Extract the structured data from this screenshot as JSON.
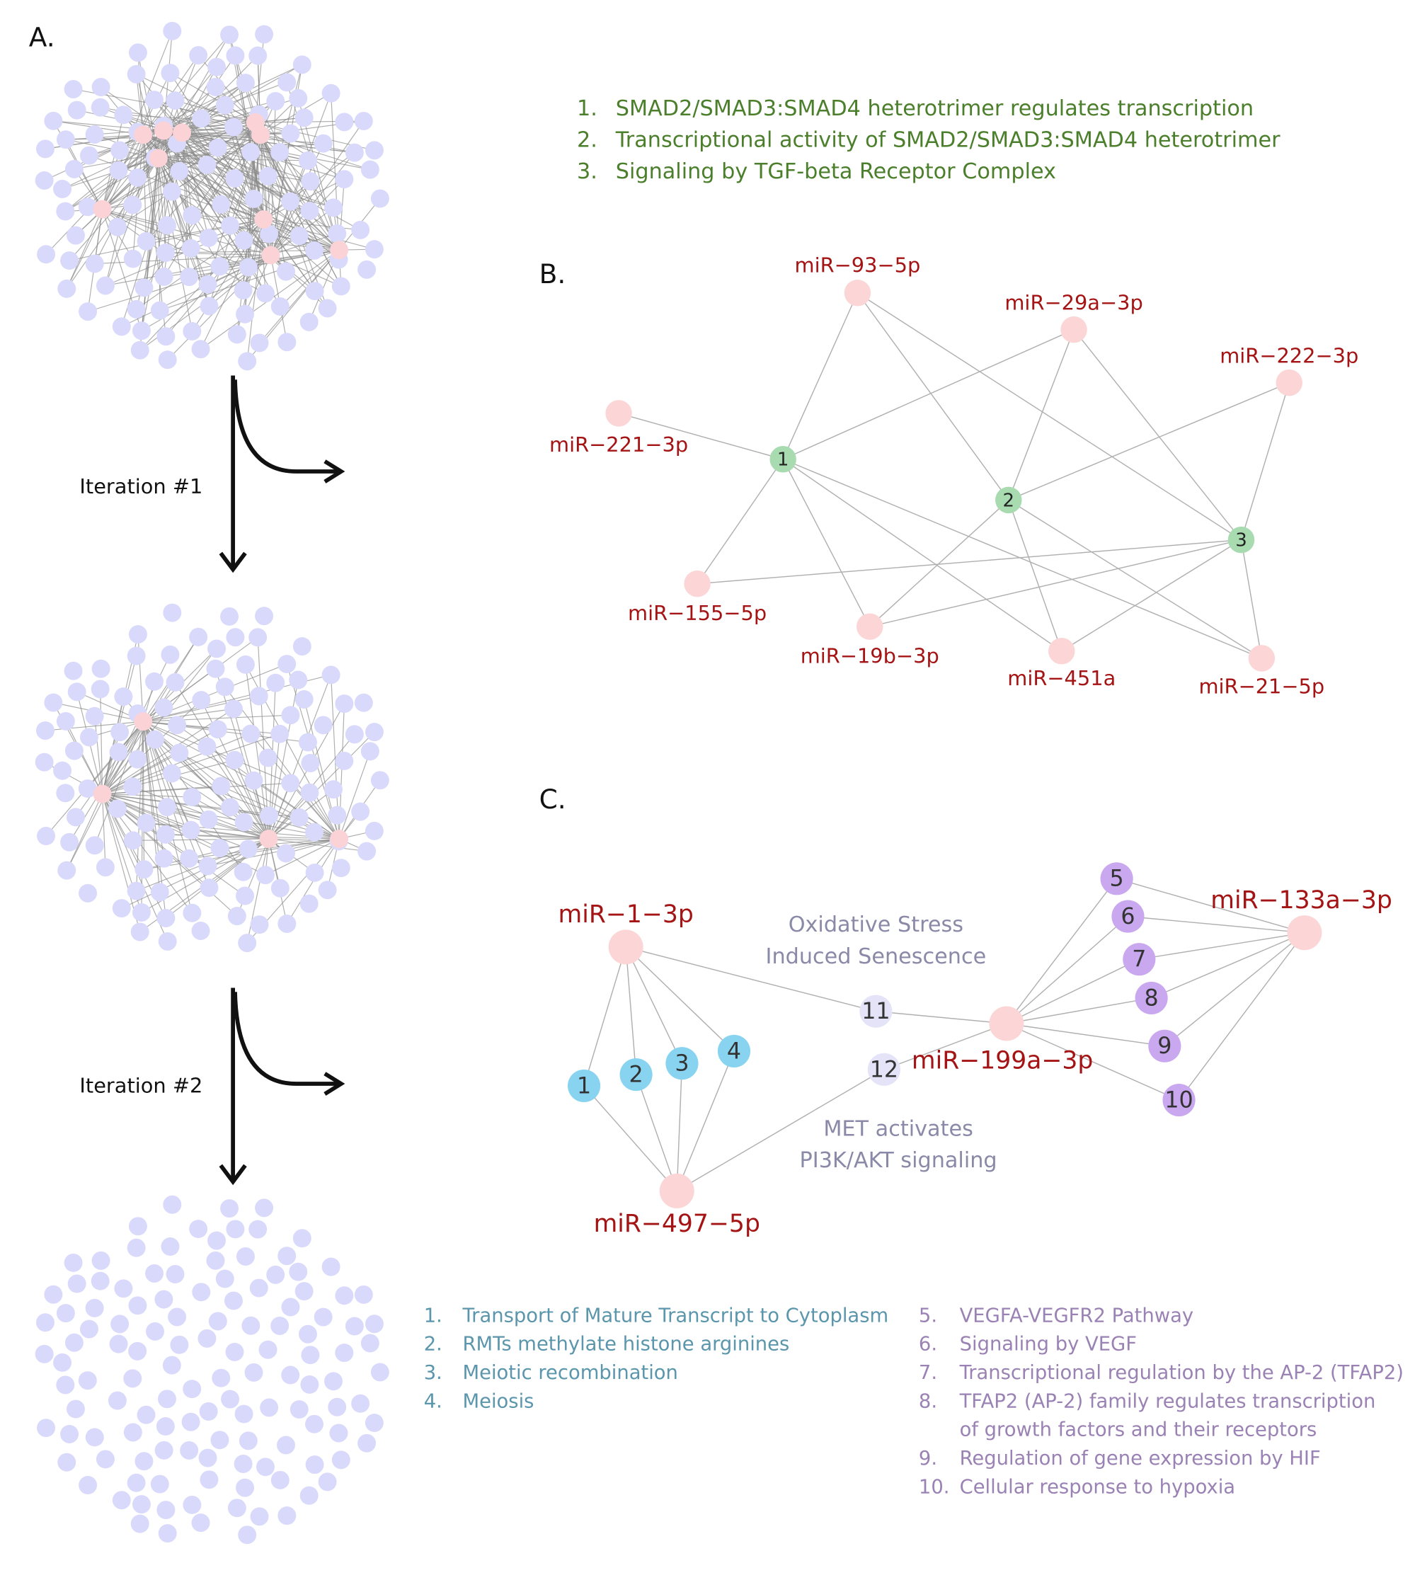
{
  "panel_a": {
    "label": "A.",
    "iterations": [
      "Iteration #1",
      "Iteration #2"
    ]
  },
  "panel_b": {
    "label": "B.",
    "pathways": [
      {
        "number": "1.",
        "name": "SMAD2/SMAD3:SMAD4 heterotrimer regulates transcription"
      },
      {
        "number": "2.",
        "name": "Transcriptional activity of SMAD2/SMAD3:SMAD4 heterotrimer"
      },
      {
        "number": "3.",
        "name": "Signaling by TGF-beta Receptor Complex"
      }
    ],
    "pathway_nodes": [
      "1",
      "2",
      "3"
    ],
    "mirna_nodes": [
      "miR−93−5p",
      "miR−29a−3p",
      "miR−222−3p",
      "miR−221−3p",
      "miR−155−5p",
      "miR−19b−3p",
      "miR−451a",
      "miR−21−5p"
    ]
  },
  "panel_c": {
    "label": "C.",
    "mirna_nodes": [
      "miR−1−3p",
      "miR−133a−3p",
      "miR−199a−3p",
      "miR−497−5p"
    ],
    "pathway_nodes": [
      "1",
      "2",
      "3",
      "4",
      "5",
      "6",
      "7",
      "8",
      "9",
      "10",
      "11",
      "12"
    ],
    "annotations": [
      [
        "Oxidative Stress",
        "Induced Senescence"
      ],
      [
        "MET activates",
        "PI3K/AKT signaling"
      ]
    ],
    "pathways": [
      {
        "number": "1.",
        "lines": [
          "Transport of Mature Transcript to Cytoplasm"
        ]
      },
      {
        "number": "2.",
        "lines": [
          "RMTs methylate histone arginines"
        ]
      },
      {
        "number": "3.",
        "lines": [
          "Meiotic recombination"
        ]
      },
      {
        "number": "4.",
        "lines": [
          "Meiosis"
        ]
      },
      {
        "number": "5.",
        "lines": [
          "VEGFA-VEGFR2 Pathway"
        ]
      },
      {
        "number": "6.",
        "lines": [
          "Signaling by VEGF"
        ]
      },
      {
        "number": "7.",
        "lines": [
          "Transcriptional regulation by the AP-2 (TFAP2)"
        ]
      },
      {
        "number": "8.",
        "lines": [
          "TFAP2 (AP-2) family regulates transcription",
          "of growth factors and their receptors"
        ]
      },
      {
        "number": "9.",
        "lines": [
          "Regulation of gene expression by HIF"
        ]
      },
      {
        "number": "10.",
        "lines": [
          "Cellular response to hypoxia"
        ]
      }
    ]
  }
}
